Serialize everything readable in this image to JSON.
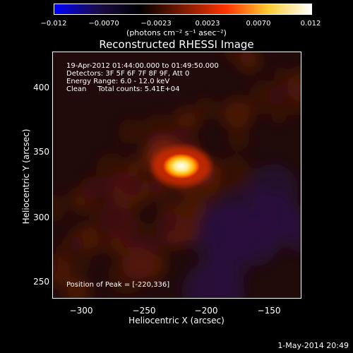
{
  "colorbar": {
    "ticks": [
      "−0.012",
      "−0.0070",
      "−0.0023",
      "0.0023",
      "0.0070",
      "0.012"
    ],
    "units": "(photons cm⁻² s⁻¹ asec⁻²)"
  },
  "title": "Reconstructed RHESSI Image",
  "annotations": {
    "time": "19-Apr-2012 01:44:00.000 to 01:49:50.000",
    "detectors": "Detectors: 3F 5F 6F 7F 8F 9F, Att 0",
    "energy": "Energy Range: 6.0 - 12.0 keV",
    "clean": "Clean     Total counts: 5.41E+04",
    "peak": "Position of Peak = [-220,336]"
  },
  "axes": {
    "xlabel": "Heliocentric X (arcsec)",
    "ylabel": "Heliocentric Y (arcsec)",
    "xticks": [
      "−300",
      "−250",
      "−200",
      "−150"
    ],
    "yticks": [
      "400",
      "350",
      "300",
      "250"
    ]
  },
  "image": {
    "peak_x": -220,
    "peak_y": 336,
    "x_range": [
      -320,
      -127
    ],
    "y_range": [
      233,
      425
    ],
    "colormap": [
      "#0000ff",
      "#1a0b4a",
      "#000000",
      "#7a1a00",
      "#ff3300",
      "#ffcc33",
      "#ffffff"
    ]
  },
  "footer": {
    "date": "1-May-2014 20:49"
  }
}
